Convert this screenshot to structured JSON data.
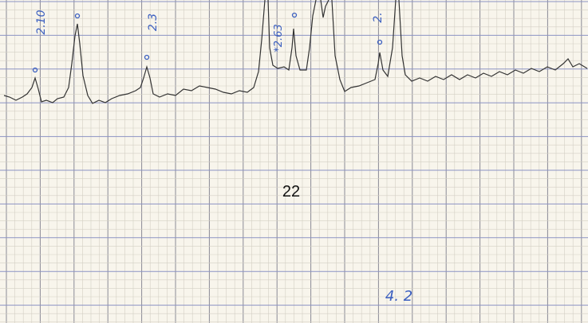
{
  "peak_labels": [
    "2.10",
    "2.3",
    "*2.63",
    "2."
  ],
  "page_number": "22",
  "sheet_note": "4. 2"
}
